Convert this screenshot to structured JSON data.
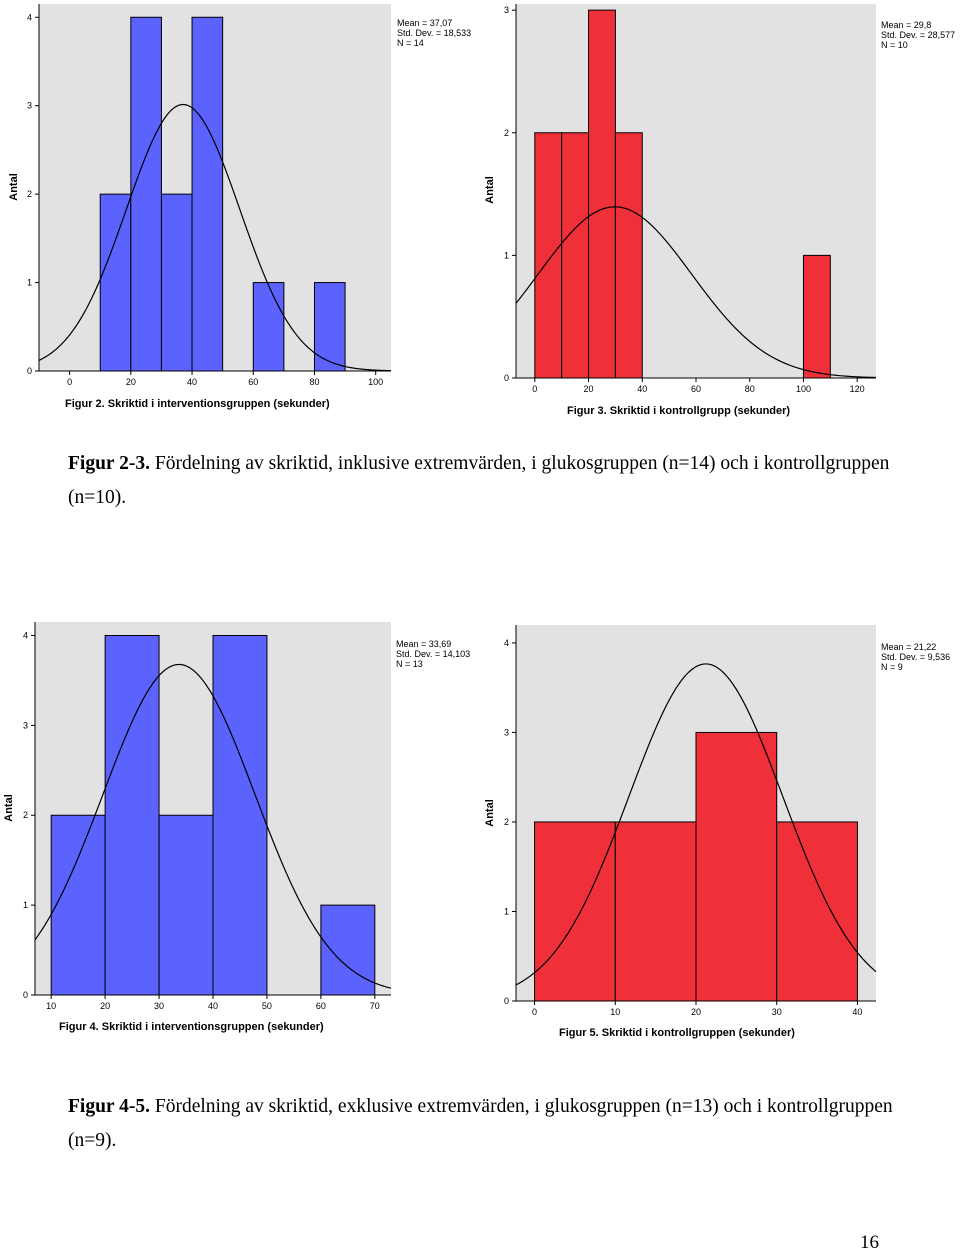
{
  "charts": {
    "fig2": {
      "title": "Figur 2. Skriktid i interventionsgruppen (sekunder)",
      "ylabel": "Antal",
      "stats": [
        "Mean = 37,07",
        "Std. Dev. = 18,533",
        "N = 14"
      ]
    },
    "fig3": {
      "title": "Figur 3. Skriktid i kontrollgrupp (sekunder)",
      "ylabel": "Antal",
      "stats": [
        "Mean = 29,8",
        "Std. Dev. = 28,577",
        "N = 10"
      ]
    },
    "fig4": {
      "title": "Figur 4. Skriktid i interventionsgruppen (sekunder)",
      "ylabel": "Antal",
      "stats": [
        "Mean = 33,69",
        "Std. Dev. = 14,103",
        "N = 13"
      ]
    },
    "fig5": {
      "title": "Figur 5. Skriktid i kontrollgruppen (sekunder)",
      "ylabel": "Antal",
      "stats": [
        "Mean = 21,22",
        "Std. Dev. = 9,536",
        "N = 9"
      ]
    }
  },
  "chart_data": [
    {
      "type": "bar",
      "title": "Figur 2. Skriktid i interventionsgruppen (sekunder)",
      "ylabel": "Antal",
      "color": "#5b62fd",
      "xlim": [
        -10,
        105
      ],
      "ylim": [
        0,
        4.15
      ],
      "xticks": [
        0,
        20,
        40,
        60,
        80,
        100
      ],
      "yticks": [
        0,
        1,
        2,
        3,
        4
      ],
      "bins": [
        {
          "x0": 10,
          "x1": 20,
          "count": 2
        },
        {
          "x0": 20,
          "x1": 30,
          "count": 4
        },
        {
          "x0": 30,
          "x1": 40,
          "count": 2
        },
        {
          "x0": 40,
          "x1": 50,
          "count": 4
        },
        {
          "x0": 60,
          "x1": 70,
          "count": 1
        },
        {
          "x0": 80,
          "x1": 90,
          "count": 1
        }
      ],
      "normal_curve": {
        "mean": 37.07,
        "sd": 18.533,
        "n": 14,
        "bin_width": 10
      }
    },
    {
      "type": "bar",
      "title": "Figur 3. Skriktid i kontrollgrupp (sekunder)",
      "ylabel": "Antal",
      "color": "#ef3038",
      "xlim": [
        -7,
        127
      ],
      "ylim": [
        0,
        3.05
      ],
      "xticks": [
        0,
        20,
        40,
        60,
        80,
        100,
        120
      ],
      "yticks": [
        0,
        1,
        2,
        3
      ],
      "bins": [
        {
          "x0": 0,
          "x1": 10,
          "count": 2
        },
        {
          "x0": 10,
          "x1": 20,
          "count": 2
        },
        {
          "x0": 20,
          "x1": 30,
          "count": 3
        },
        {
          "x0": 30,
          "x1": 40,
          "count": 2
        },
        {
          "x0": 100,
          "x1": 110,
          "count": 1
        }
      ],
      "normal_curve": {
        "mean": 29.8,
        "sd": 28.577,
        "n": 10,
        "bin_width": 10
      }
    },
    {
      "type": "bar",
      "title": "Figur 4. Skriktid i interventionsgruppen (sekunder)",
      "ylabel": "Antal",
      "color": "#5b62fd",
      "xlim": [
        7,
        73
      ],
      "ylim": [
        0,
        4.15
      ],
      "xticks": [
        10,
        20,
        30,
        40,
        50,
        60,
        70
      ],
      "yticks": [
        0,
        1,
        2,
        3,
        4
      ],
      "bins": [
        {
          "x0": 10,
          "x1": 20,
          "count": 2
        },
        {
          "x0": 20,
          "x1": 30,
          "count": 4
        },
        {
          "x0": 30,
          "x1": 40,
          "count": 2
        },
        {
          "x0": 40,
          "x1": 50,
          "count": 4
        },
        {
          "x0": 60,
          "x1": 70,
          "count": 1
        }
      ],
      "normal_curve": {
        "mean": 33.69,
        "sd": 14.103,
        "n": 13,
        "bin_width": 10
      }
    },
    {
      "type": "bar",
      "title": "Figur 5. Skriktid i kontrollgruppen (sekunder)",
      "ylabel": "Antal",
      "color": "#ef3038",
      "xlim": [
        -2.3,
        42.3
      ],
      "ylim": [
        0,
        4.2
      ],
      "xticks": [
        0,
        10,
        20,
        30,
        40
      ],
      "yticks": [
        0,
        1,
        2,
        3,
        4
      ],
      "bins": [
        {
          "x0": 0,
          "x1": 10,
          "count": 2
        },
        {
          "x0": 10,
          "x1": 20,
          "count": 2
        },
        {
          "x0": 20,
          "x1": 30,
          "count": 3
        },
        {
          "x0": 30,
          "x1": 40,
          "count": 2
        }
      ],
      "normal_curve": {
        "mean": 21.22,
        "sd": 9.536,
        "n": 9,
        "bin_width": 10
      }
    }
  ],
  "captions": {
    "first": {
      "label": "Figur 2-3.",
      "text": " Fördelning av skriktid, inklusive extremvärden, i glukosgruppen (n=14) och i kontrollgruppen (n=10)."
    },
    "second": {
      "label": "Figur 4-5.",
      "text": " Fördelning av skriktid, exklusive extremvärden, i glukosgruppen (n=13) och i kontrollgruppen (n=9)."
    }
  },
  "page_number": "16"
}
